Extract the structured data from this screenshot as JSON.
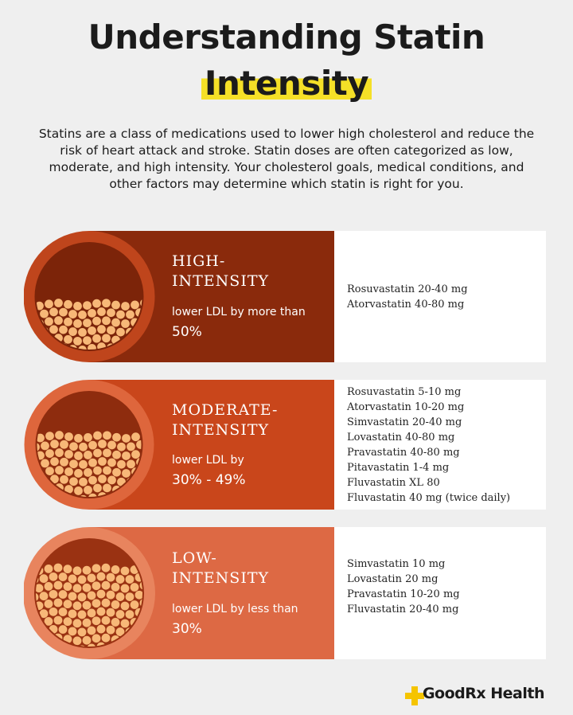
{
  "header": {
    "title_line_1": "Understanding Statin",
    "title_line_2": "Intensity",
    "intro": "Statins are a class of medications used to lower high cholesterol and reduce the risk of heart attack and stroke. Statin doses are often categorized as low, moderate, and high intensity. Your cholesterol goals, medical conditions, and other factors may determine which statin is right for you."
  },
  "rows": [
    {
      "title_lines": [
        "HIGH-",
        "INTENSITY"
      ],
      "description": "lower LDL by more than",
      "amount": "50%",
      "drugs": [
        "Rosuvastatin 20-40 mg",
        "Atorvastatin 40-80 mg"
      ]
    },
    {
      "title_lines": [
        "MODERATE-",
        "INTENSITY"
      ],
      "description": "lower LDL by",
      "amount": "30% - 49%",
      "drugs": [
        "Rosuvastatin 5-10 mg",
        "Atorvastatin 10-20 mg",
        "Simvastatin 20-40 mg",
        "Lovastatin 40-80 mg",
        "Pravastatin 40-80 mg",
        "Pitavastatin 1-4 mg",
        "Fluvastatin XL 80",
        "Fluvastatin 40 mg (twice daily)"
      ]
    },
    {
      "title_lines": [
        "LOW-",
        "INTENSITY"
      ],
      "description": "lower LDL by less than",
      "amount": "30%",
      "drugs": [
        "Simvastatin 10 mg",
        "Lovastatin 20 mg",
        "Pravastatin 10-20 mg",
        "Fluvastatin 20-40 mg"
      ]
    }
  ],
  "footer": {
    "brand": "GoodRx Health"
  }
}
